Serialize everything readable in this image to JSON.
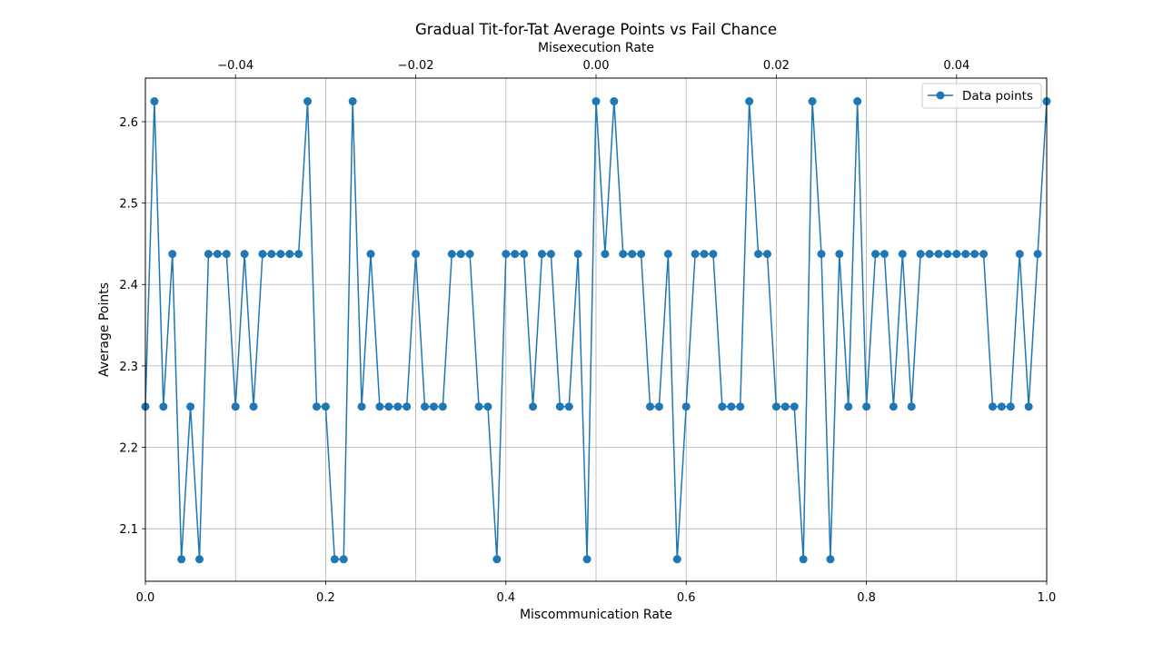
{
  "chart_data": {
    "type": "line",
    "title": "Gradual Tit-for-Tat Average Points vs Fail Chance",
    "xlabel": "Miscommunication Rate",
    "ylabel": "Average Points",
    "x2label": "Misexecution Rate",
    "xlim": [
      0.0,
      1.0
    ],
    "ylim": [
      2.0355,
      2.6535
    ],
    "x2lim": [
      -0.05,
      0.05
    ],
    "x_ticks": [
      0.0,
      0.2,
      0.4,
      0.6,
      0.8,
      1.0
    ],
    "x_tick_labels": [
      "0.0",
      "0.2",
      "0.4",
      "0.6",
      "0.8",
      "1.0"
    ],
    "y_ticks": [
      2.1,
      2.2,
      2.3,
      2.4,
      2.5,
      2.6
    ],
    "y_tick_labels": [
      "2.1",
      "2.2",
      "2.3",
      "2.4",
      "2.5",
      "2.6"
    ],
    "x2_ticks": [
      -0.04,
      -0.02,
      0.0,
      0.02,
      0.04
    ],
    "x2_tick_labels": [
      "−0.04",
      "−0.02",
      "0.00",
      "0.02",
      "0.04"
    ],
    "grid": true,
    "legend_position": "top-right",
    "series": [
      {
        "name": "Data points",
        "color": "#1f77b4",
        "marker": "circle",
        "x": [
          0.0,
          0.01,
          0.02,
          0.03,
          0.04,
          0.05,
          0.06,
          0.07,
          0.08,
          0.09,
          0.1,
          0.11,
          0.12,
          0.13,
          0.14,
          0.15,
          0.16,
          0.17,
          0.18,
          0.19,
          0.2,
          0.21,
          0.22,
          0.23,
          0.24,
          0.25,
          0.26,
          0.27,
          0.28,
          0.29,
          0.3,
          0.31,
          0.32,
          0.33,
          0.34,
          0.35,
          0.36,
          0.37,
          0.38,
          0.39,
          0.4,
          0.41,
          0.42,
          0.43,
          0.44,
          0.45,
          0.46,
          0.47,
          0.48,
          0.49,
          0.5,
          0.51,
          0.52,
          0.53,
          0.54,
          0.55,
          0.56,
          0.57,
          0.58,
          0.59,
          0.6,
          0.61,
          0.62,
          0.63,
          0.64,
          0.65,
          0.66,
          0.67,
          0.68,
          0.69,
          0.7,
          0.71,
          0.72,
          0.73,
          0.74,
          0.75,
          0.76,
          0.77,
          0.78,
          0.79,
          0.8,
          0.81,
          0.82,
          0.83,
          0.84,
          0.85,
          0.86,
          0.87,
          0.88,
          0.89,
          0.9,
          0.91,
          0.92,
          0.93,
          0.94,
          0.95,
          0.96,
          0.97,
          0.98,
          0.99,
          1.0
        ],
        "y": [
          2.25,
          2.625,
          2.25,
          2.4375,
          2.0625,
          2.25,
          2.0625,
          2.4375,
          2.4375,
          2.4375,
          2.25,
          2.4375,
          2.25,
          2.4375,
          2.4375,
          2.4375,
          2.4375,
          2.4375,
          2.625,
          2.25,
          2.25,
          2.0625,
          2.0625,
          2.625,
          2.25,
          2.4375,
          2.25,
          2.25,
          2.25,
          2.25,
          2.4375,
          2.25,
          2.25,
          2.25,
          2.4375,
          2.4375,
          2.4375,
          2.25,
          2.25,
          2.0625,
          2.4375,
          2.4375,
          2.4375,
          2.25,
          2.4375,
          2.4375,
          2.25,
          2.25,
          2.4375,
          2.0625,
          2.625,
          2.4375,
          2.625,
          2.4375,
          2.4375,
          2.4375,
          2.25,
          2.25,
          2.4375,
          2.0625,
          2.25,
          2.4375,
          2.4375,
          2.4375,
          2.25,
          2.25,
          2.25,
          2.625,
          2.4375,
          2.4375,
          2.25,
          2.25,
          2.25,
          2.0625,
          2.625,
          2.4375,
          2.0625,
          2.4375,
          2.25,
          2.625,
          2.25,
          2.4375,
          2.4375,
          2.25,
          2.4375,
          2.25,
          2.4375,
          2.4375,
          2.4375,
          2.4375,
          2.4375,
          2.4375,
          2.4375,
          2.4375,
          2.25,
          2.25,
          2.25,
          2.4375,
          2.25,
          2.4375,
          2.625
        ]
      }
    ]
  }
}
